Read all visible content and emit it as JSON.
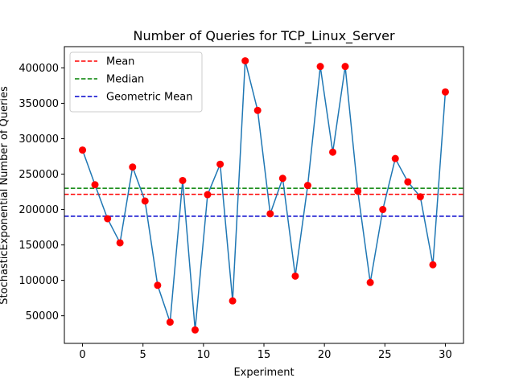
{
  "chart_data": {
    "type": "line",
    "title": "Number of Queries for TCP_Linux_Server",
    "xlabel": "Experiment",
    "ylabel": "StochasticExponential Number of Queries",
    "xlim": [
      -1.5,
      31.5
    ],
    "ylim": [
      11000,
      430000
    ],
    "xticks": [
      0,
      5,
      10,
      15,
      20,
      25,
      30
    ],
    "yticks": [
      50000,
      100000,
      150000,
      200000,
      250000,
      300000,
      350000,
      400000
    ],
    "grid": false,
    "legend_position": "top-left",
    "series": [
      {
        "x": [
          0,
          1.03,
          2.07,
          3.1,
          4.14,
          5.17,
          6.21,
          7.24,
          8.28,
          9.31,
          10.34,
          11.38,
          12.41,
          13.45,
          14.48,
          15.52,
          16.55,
          17.59,
          18.62,
          19.66,
          20.69,
          21.72,
          22.76,
          23.79,
          24.83,
          25.86,
          26.9,
          27.93,
          28.97,
          30
        ],
        "y": [
          284000,
          235000,
          187000,
          153000,
          260000,
          212000,
          93000,
          41000,
          241000,
          30000,
          221000,
          264000,
          71000,
          410000,
          340000,
          194000,
          244000,
          106000,
          234000,
          402000,
          281000,
          402000,
          226000,
          97000,
          200000,
          272000,
          239000,
          218000,
          122000,
          366000
        ],
        "line_color": "#1f77b4",
        "marker_color": "#ff0000"
      }
    ],
    "reference_lines": [
      {
        "name": "Mean",
        "value": 221500,
        "color": "#ff0000"
      },
      {
        "name": "Median",
        "value": 230000,
        "color": "#008000"
      },
      {
        "name": "Geometric Mean",
        "value": 190500,
        "color": "#0000cc"
      }
    ]
  }
}
